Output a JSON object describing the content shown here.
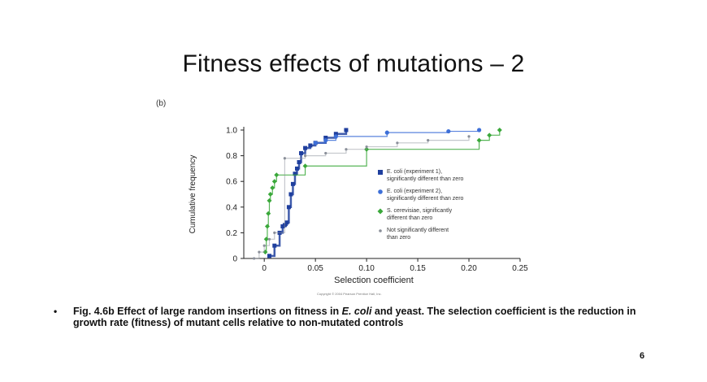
{
  "slide": {
    "title": "Fitness effects of mutations – 2",
    "panel_label": "(b)",
    "bullet": "•",
    "caption_part1": "Fig. 4.6b  Effect of large random insertions on fitness in ",
    "caption_italic": "E. coli",
    "caption_part2": " and yeast.  The selection coefficient is the reduction in growth rate (fitness) of mutant cells relative to non-mutated controls",
    "page_number": "6",
    "copyright": "Copyright © 2004 Pearson Prentice Hall, Inc."
  },
  "chart_data": {
    "type": "line",
    "xlabel": "Selection coefficient",
    "ylabel": "Cumulative frequency",
    "xlim": [
      -0.02,
      0.25
    ],
    "ylim": [
      0,
      1.0
    ],
    "xticks": [
      0,
      0.05,
      0.1,
      0.15,
      0.2,
      0.25
    ],
    "xtick_labels": [
      "0",
      "0.05",
      "0.10",
      "0.15",
      "0.20",
      "0.25"
    ],
    "yticks": [
      0,
      0.2,
      0.4,
      0.6,
      0.8,
      1.0
    ],
    "ytick_labels": [
      "0",
      "0.2",
      "0.4",
      "0.6",
      "0.8",
      "1.0"
    ],
    "grid": false,
    "legend_position": "right-inside",
    "series": [
      {
        "name": "E. coli (experiment 1), significantly different than zero",
        "color": "#1f3f9e",
        "marker": "square",
        "x": [
          0.005,
          0.01,
          0.015,
          0.018,
          0.02,
          0.022,
          0.024,
          0.026,
          0.028,
          0.03,
          0.032,
          0.034,
          0.036,
          0.04,
          0.045,
          0.05,
          0.06,
          0.07,
          0.08
        ],
        "y": [
          0.02,
          0.1,
          0.2,
          0.25,
          0.26,
          0.28,
          0.4,
          0.5,
          0.58,
          0.66,
          0.7,
          0.75,
          0.82,
          0.86,
          0.88,
          0.9,
          0.94,
          0.97,
          1.0
        ]
      },
      {
        "name": "E. coli (experiment 2), significantly different than zero",
        "color": "#3d6fd8",
        "marker": "circle",
        "x": [
          0.05,
          0.06,
          0.07,
          0.12,
          0.18,
          0.21
        ],
        "y": [
          0.9,
          0.92,
          0.95,
          0.98,
          0.99,
          1.0
        ]
      },
      {
        "name": "S. cerevisiae, significantly different than zero",
        "color": "#3aa83a",
        "marker": "diamond",
        "x": [
          0.001,
          0.002,
          0.003,
          0.004,
          0.005,
          0.006,
          0.008,
          0.01,
          0.012,
          0.04,
          0.1,
          0.21,
          0.22,
          0.23
        ],
        "y": [
          0.05,
          0.15,
          0.25,
          0.35,
          0.45,
          0.5,
          0.55,
          0.6,
          0.65,
          0.72,
          0.85,
          0.92,
          0.96,
          1.0
        ]
      },
      {
        "name": "Not significantly different than zero",
        "color": "#8a8f99",
        "marker": "dot",
        "x": [
          -0.01,
          -0.005,
          0.0,
          0.005,
          0.01,
          0.02,
          0.04,
          0.06,
          0.08,
          0.1,
          0.13,
          0.16,
          0.2
        ],
        "y": [
          0.0,
          0.05,
          0.1,
          0.15,
          0.2,
          0.78,
          0.8,
          0.82,
          0.85,
          0.87,
          0.9,
          0.92,
          0.95
        ]
      }
    ],
    "legend": [
      {
        "label_line1": "E. coli (experiment 1),",
        "label_line2": "significantly different than zero"
      },
      {
        "label_line1": "E. coli (experiment 2),",
        "label_line2": "significantly different than zero"
      },
      {
        "label_line1": "S. cerevisiae, significantly",
        "label_line2": "different than zero"
      },
      {
        "label_line1": "Not significantly different",
        "label_line2": "than zero"
      }
    ]
  }
}
